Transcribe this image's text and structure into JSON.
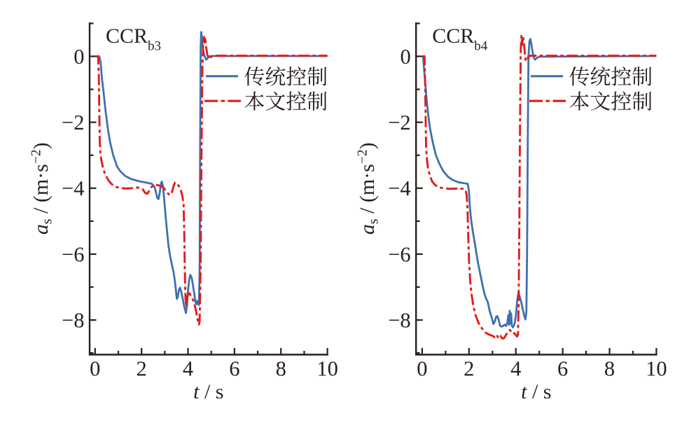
{
  "figure": {
    "background": "#ffffff",
    "ink_color": "#281f1d",
    "description": "Comparison of longitudinal acceleration under traditional control vs proposed control for CCR scenarios"
  },
  "chart_data": [
    {
      "type": "line",
      "title": "CCR",
      "title_subscript": "b3",
      "xlabel": "t / s",
      "ylabel": "aₛ / (m·s⁻²)",
      "xlabel_parts": [
        {
          "t": "t",
          "style": "italic"
        },
        {
          "t": " / s",
          "style": "normal"
        }
      ],
      "ylabel_parts": [
        {
          "t": "a",
          "style": "italic"
        },
        {
          "t": "s",
          "style": "sub"
        },
        {
          "t": " / (m·s",
          "style": "normal"
        },
        {
          "t": "−2",
          "style": "sup"
        },
        {
          "t": ")",
          "style": "normal"
        }
      ],
      "xlim": [
        -0.235,
        10
      ],
      "ylim": [
        -9.05,
        1.03
      ],
      "x_major_ticks": [
        0,
        2,
        4,
        6,
        8,
        10
      ],
      "x_major_labels": [
        "0",
        "2",
        "4",
        "6",
        "8",
        "10"
      ],
      "x_minor_ticks": [
        1,
        3,
        5,
        7,
        9
      ],
      "y_major_ticks": [
        0,
        -2,
        -4,
        -6,
        -8
      ],
      "y_major_labels": [
        "0",
        "−2",
        "−4",
        "−6",
        "−8"
      ],
      "y_minor_ticks": [
        1,
        -1,
        -3,
        -5,
        -7,
        -9
      ],
      "grid": false,
      "legend_position": "upper-right-inside",
      "series": [
        {
          "name": "传统控制",
          "color": "#4070ae",
          "line_style": "solid",
          "x": [
            0,
            0.18,
            0.24,
            0.3,
            0.36,
            0.45,
            0.55,
            0.65,
            0.78,
            0.95,
            1.1,
            1.3,
            1.55,
            1.9,
            2.2,
            2.45,
            2.55,
            2.62,
            2.68,
            2.73,
            2.78,
            2.83,
            2.87,
            2.92,
            2.97,
            3.03,
            3.09,
            3.16,
            3.24,
            3.31,
            3.38,
            3.44,
            3.48,
            3.52,
            3.56,
            3.61,
            3.66,
            3.71,
            3.76,
            3.81,
            3.86,
            3.91,
            3.96,
            4.0,
            4.05,
            4.1,
            4.16,
            4.22,
            4.28,
            4.33,
            4.37,
            4.4,
            4.44,
            4.47,
            4.5,
            4.52,
            4.545,
            4.57,
            4.6,
            4.64,
            4.68,
            4.73,
            4.78,
            4.84,
            4.9,
            4.97,
            5.1,
            10
          ],
          "y": [
            0,
            0,
            -0.18,
            -0.7,
            -1.05,
            -1.65,
            -2.2,
            -2.62,
            -3.0,
            -3.35,
            -3.5,
            -3.63,
            -3.72,
            -3.79,
            -3.83,
            -3.87,
            -3.95,
            -4.12,
            -4.3,
            -4.33,
            -4.15,
            -3.88,
            -3.8,
            -3.92,
            -4.3,
            -4.8,
            -5.25,
            -5.75,
            -6.1,
            -6.33,
            -6.55,
            -6.85,
            -7.1,
            -7.36,
            -7.3,
            -7.08,
            -7.02,
            -7.15,
            -7.3,
            -7.5,
            -7.65,
            -7.79,
            -7.55,
            -7.1,
            -6.78,
            -6.63,
            -6.72,
            -6.98,
            -7.25,
            -7.48,
            -7.52,
            -7.42,
            -7.48,
            -7.55,
            -6.5,
            -3.0,
            0.3,
            0.74,
            0.55,
            0.25,
            0.08,
            -0.02,
            -0.1,
            -0.06,
            -0.01,
            0.01,
            0.01,
            0.01
          ]
        },
        {
          "name": "本文控制",
          "color": "#e31b18",
          "line_style": "dash-dot",
          "x": [
            0,
            0.13,
            0.16,
            0.18,
            0.2,
            0.23,
            0.28,
            0.35,
            0.45,
            0.58,
            0.72,
            0.9,
            1.1,
            1.35,
            1.6,
            1.82,
            1.95,
            2.05,
            2.15,
            2.25,
            2.33,
            2.42,
            2.52,
            2.65,
            2.8,
            2.92,
            3.0,
            3.08,
            3.16,
            3.24,
            3.32,
            3.38,
            3.44,
            3.5,
            3.57,
            3.64,
            3.7,
            3.76,
            3.81,
            3.84,
            3.86,
            3.89,
            3.92,
            3.97,
            4.02,
            4.08,
            4.14,
            4.21,
            4.27,
            4.33,
            4.38,
            4.43,
            4.47,
            4.5,
            4.54,
            4.58,
            4.62,
            4.655,
            4.68,
            4.71,
            4.74,
            4.78,
            4.83,
            4.89,
            4.96,
            5.08,
            10
          ],
          "y": [
            0,
            0,
            -0.6,
            -1.6,
            -2.55,
            -2.95,
            -3.18,
            -3.42,
            -3.6,
            -3.77,
            -3.88,
            -3.96,
            -4.0,
            -4.01,
            -4.0,
            -3.98,
            -4.0,
            -4.03,
            -4.14,
            -4.17,
            -4.08,
            -3.97,
            -3.91,
            -3.9,
            -3.93,
            -3.97,
            -4.03,
            -4.11,
            -4.18,
            -4.21,
            -4.1,
            -3.93,
            -3.83,
            -3.86,
            -3.9,
            -3.97,
            -4.08,
            -4.25,
            -4.5,
            -5.4,
            -6.4,
            -7.3,
            -7.6,
            -7.3,
            -7.18,
            -7.2,
            -7.32,
            -7.38,
            -7.5,
            -7.68,
            -7.85,
            -8.05,
            -8.14,
            -8.05,
            -6.5,
            -3.0,
            -0.3,
            0.45,
            0.62,
            0.42,
            0.58,
            0.28,
            0.06,
            -0.07,
            -0.03,
            0.02,
            0.02
          ]
        }
      ]
    },
    {
      "type": "line",
      "title": "CCR",
      "title_subscript": "b4",
      "xlabel": "t / s",
      "ylabel": "aₛ / (m·s⁻²)",
      "xlabel_parts": [
        {
          "t": "t",
          "style": "italic"
        },
        {
          "t": " / s",
          "style": "normal"
        }
      ],
      "ylabel_parts": [
        {
          "t": "a",
          "style": "italic"
        },
        {
          "t": "s",
          "style": "sub"
        },
        {
          "t": " / (m·s",
          "style": "normal"
        },
        {
          "t": "−2",
          "style": "sup"
        },
        {
          "t": ")",
          "style": "normal"
        }
      ],
      "xlim": [
        -0.26,
        10
      ],
      "ylim": [
        -9.05,
        1.03
      ],
      "x_major_ticks": [
        0,
        2,
        4,
        6,
        8,
        10
      ],
      "x_major_labels": [
        "0",
        "2",
        "4",
        "6",
        "8",
        "10"
      ],
      "x_minor_ticks": [
        1,
        3,
        5,
        7,
        9
      ],
      "y_major_ticks": [
        0,
        -2,
        -4,
        -6,
        -8
      ],
      "y_major_labels": [
        "0",
        "−2",
        "−4",
        "−6",
        "−8"
      ],
      "y_minor_ticks": [
        1,
        -1,
        -3,
        -5,
        -7,
        -9
      ],
      "grid": false,
      "legend_position": "upper-right-inside",
      "series": [
        {
          "name": "传统控制",
          "color": "#4070ae",
          "line_style": "solid",
          "x": [
            0,
            0.04,
            0.08,
            0.13,
            0.19,
            0.26,
            0.34,
            0.45,
            0.58,
            0.73,
            0.9,
            1.1,
            1.3,
            1.55,
            1.8,
            1.95,
            2.0,
            2.04,
            2.09,
            2.15,
            2.22,
            2.3,
            2.38,
            2.48,
            2.58,
            2.66,
            2.73,
            2.8,
            2.88,
            2.97,
            3.04,
            3.1,
            3.16,
            3.21,
            3.27,
            3.33,
            3.39,
            3.45,
            3.52,
            3.58,
            3.64,
            3.68,
            3.71,
            3.74,
            3.77,
            3.8,
            3.83,
            3.87,
            3.91,
            3.95,
            4.0,
            4.06,
            4.11,
            4.17,
            4.23,
            4.29,
            4.35,
            4.41,
            4.45,
            4.48,
            4.51,
            4.54,
            4.58,
            4.62,
            4.66,
            4.71,
            4.76,
            4.82,
            4.9,
            5.0,
            10
          ],
          "y": [
            0,
            -0.02,
            -0.35,
            -0.8,
            -1.3,
            -1.78,
            -2.2,
            -2.6,
            -2.98,
            -3.25,
            -3.48,
            -3.65,
            -3.75,
            -3.82,
            -3.85,
            -3.87,
            -4.1,
            -4.6,
            -4.95,
            -5.25,
            -5.55,
            -5.9,
            -6.25,
            -6.6,
            -6.95,
            -7.2,
            -7.35,
            -7.45,
            -7.72,
            -7.92,
            -8.12,
            -8.05,
            -7.9,
            -7.88,
            -8.0,
            -8.18,
            -8.2,
            -8.18,
            -8.14,
            -8.18,
            -8.08,
            -7.85,
            -8.15,
            -7.72,
            -8.1,
            -7.8,
            -8.18,
            -8.22,
            -8.18,
            -8.1,
            -7.88,
            -7.4,
            -7.17,
            -7.3,
            -7.45,
            -7.65,
            -7.85,
            -7.98,
            -7.75,
            -6.0,
            -2.5,
            0.0,
            0.45,
            0.53,
            0.38,
            0.15,
            -0.02,
            -0.1,
            -0.05,
            -0.01,
            0.01
          ]
        },
        {
          "name": "本文控制",
          "color": "#e31b18",
          "line_style": "dash-dot",
          "x": [
            0,
            0.1,
            0.13,
            0.15,
            0.17,
            0.2,
            0.25,
            0.33,
            0.43,
            0.55,
            0.7,
            0.9,
            1.2,
            1.5,
            1.75,
            1.85,
            1.9,
            1.94,
            1.97,
            2.0,
            2.05,
            2.1,
            2.18,
            2.28,
            2.4,
            2.55,
            2.7,
            2.85,
            3.0,
            3.1,
            3.18,
            3.26,
            3.34,
            3.42,
            3.5,
            3.58,
            3.66,
            3.74,
            3.8,
            3.87,
            3.94,
            4.0,
            4.05,
            4.09,
            4.12,
            4.15,
            4.18,
            4.21,
            4.24,
            4.27,
            4.3,
            4.34,
            4.38,
            4.42,
            4.47,
            4.53,
            4.62,
            10
          ],
          "y": [
            0,
            0,
            -0.9,
            -1.9,
            -2.75,
            -3.1,
            -3.4,
            -3.62,
            -3.8,
            -3.9,
            -3.97,
            -4.0,
            -4.02,
            -4.01,
            -4.02,
            -4.05,
            -4.2,
            -4.7,
            -5.5,
            -6.2,
            -6.8,
            -7.17,
            -7.55,
            -7.85,
            -8.08,
            -8.25,
            -8.38,
            -8.44,
            -8.48,
            -8.52,
            -8.45,
            -8.55,
            -8.48,
            -8.56,
            -8.55,
            -8.45,
            -8.36,
            -8.3,
            -8.35,
            -8.42,
            -8.4,
            -8.45,
            -8.5,
            -8.45,
            -7.5,
            -5.0,
            -2.0,
            0.2,
            0.62,
            0.35,
            0.6,
            0.48,
            0.12,
            -0.15,
            -0.12,
            -0.02,
            0.02,
            0.02
          ]
        }
      ]
    }
  ]
}
